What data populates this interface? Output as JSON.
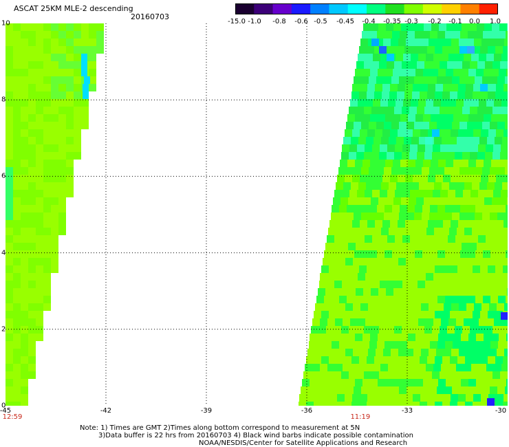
{
  "header": {
    "title": "ASCAT 25KM MLE-2 descending",
    "date": "20160703"
  },
  "color_scale": {
    "labels": [
      "-15.0",
      "-1.0",
      "-0.8",
      "-0.6",
      "-0.5",
      "-0.45",
      "-0.4",
      "-0.35",
      "-0.3",
      "-0.2",
      "-0.1",
      "0.0",
      "1.0"
    ],
    "colors": [
      "#1a0030",
      "#3c0078",
      "#6600cc",
      "#1a1aff",
      "#0080ff",
      "#00c8ff",
      "#00ffff",
      "#00ff80",
      "#20e020",
      "#80ff00",
      "#d0ff00",
      "#ffd000",
      "#ff8000",
      "#ff2000"
    ]
  },
  "map": {
    "y_ticks": [
      "0",
      "2",
      "4",
      "6",
      "8",
      "10"
    ],
    "x_ticks": [
      "-45",
      "-42",
      "-39",
      "-36",
      "-33",
      "-30"
    ],
    "x_range": [
      -45,
      -30
    ],
    "y_range": [
      0,
      10
    ],
    "time_labels": [
      {
        "lon": -45,
        "text": "12:59"
      },
      {
        "lon": -34.4,
        "text": "11:19"
      }
    ],
    "swaths": [
      {
        "name": "west-swath",
        "color_palette": [
          "#99ff00",
          "#80ff00",
          "#aaff00",
          "#66ff33",
          "#33ff66"
        ]
      },
      {
        "name": "east-swath",
        "color_palette": [
          "#99ff00",
          "#66ff00",
          "#33ff33",
          "#22ee44",
          "#00ff66",
          "#33ffaa"
        ]
      }
    ]
  },
  "notes": {
    "line1": "Note: 1) Times are GMT 2)Times along bottom correspond to measurement at 5N",
    "line2": "3)Data buffer is 22 hrs from 20160703 4) Black wind barbs indicate possible contamination",
    "line3": "NOAA/NESDIS/Center for Satellite Applications and Research"
  }
}
